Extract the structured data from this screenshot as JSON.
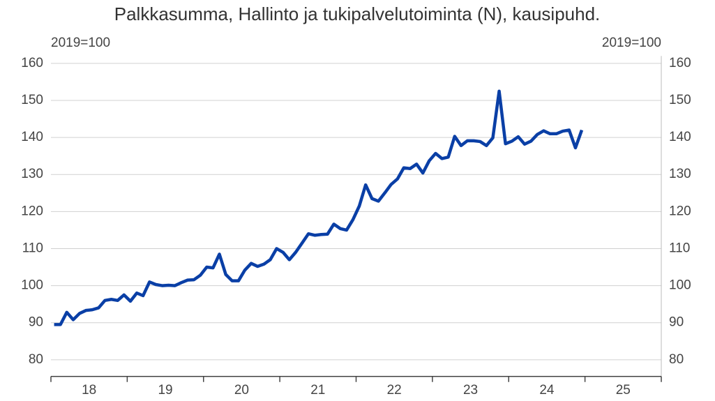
{
  "chart_data": {
    "type": "line",
    "title": "Palkkasumma, Hallinto ja tukipalvelutoiminta (N), kausipuhd.",
    "y_unit_left": "2019=100",
    "y_unit_right": "2019=100",
    "x": [
      18.042,
      18.125,
      18.208,
      18.292,
      18.375,
      18.458,
      18.542,
      18.625,
      18.708,
      18.792,
      18.875,
      18.958,
      19.042,
      19.125,
      19.208,
      19.292,
      19.375,
      19.458,
      19.542,
      19.625,
      19.708,
      19.792,
      19.875,
      19.958,
      20.042,
      20.125,
      20.208,
      20.292,
      20.375,
      20.458,
      20.542,
      20.625,
      20.708,
      20.792,
      20.875,
      20.958,
      21.042,
      21.125,
      21.208,
      21.292,
      21.375,
      21.458,
      21.542,
      21.625,
      21.708,
      21.792,
      21.875,
      21.958,
      22.042,
      22.125,
      22.208,
      22.292,
      22.375,
      22.458,
      22.542,
      22.625,
      22.708,
      22.792,
      22.875,
      22.958,
      23.042,
      23.125,
      23.208,
      23.292,
      23.375,
      23.458,
      23.542,
      23.625,
      23.708,
      23.792,
      23.875,
      23.958,
      24.042,
      24.125,
      24.208,
      24.292,
      24.375,
      24.458,
      24.542,
      24.625,
      24.708,
      24.792,
      24.875,
      24.958
    ],
    "series": [
      {
        "name": "Palkkasumma",
        "color": "#0a3fa6",
        "values": [
          89.5,
          89.5,
          92.8,
          90.8,
          92.5,
          93.3,
          93.5,
          94.0,
          96.0,
          96.3,
          96.0,
          97.5,
          95.8,
          98.0,
          97.3,
          101.0,
          100.3,
          100.0,
          100.1,
          100.0,
          100.8,
          101.5,
          101.6,
          102.8,
          105.0,
          104.8,
          108.5,
          103.0,
          101.3,
          101.3,
          104.2,
          106.0,
          105.2,
          105.8,
          107.0,
          110.0,
          109.0,
          107.0,
          109.0,
          111.5,
          114.0,
          113.6,
          113.8,
          113.9,
          116.6,
          115.4,
          115.0,
          117.8,
          121.5,
          127.2,
          123.5,
          122.8,
          125.0,
          127.3,
          128.8,
          131.8,
          131.6,
          132.8,
          130.4,
          133.7,
          135.7,
          134.3,
          134.7,
          140.3,
          137.8,
          139.1,
          139.1,
          138.9,
          137.8,
          139.9,
          152.5,
          138.3,
          139.0,
          140.2,
          138.2,
          139.0,
          140.8,
          141.8,
          141.0,
          141.0,
          141.7,
          142.0,
          137.2,
          142.0
        ]
      }
    ],
    "xlim": [
      18,
      26
    ],
    "xticks": [
      18,
      19,
      20,
      21,
      22,
      23,
      24,
      25,
      26
    ],
    "year_labels": [
      "18",
      "19",
      "20",
      "21",
      "22",
      "23",
      "24",
      "25"
    ],
    "ylim": [
      77,
      162
    ],
    "yticks": [
      80,
      90,
      100,
      110,
      120,
      130,
      140,
      150,
      160
    ],
    "grid": true
  }
}
